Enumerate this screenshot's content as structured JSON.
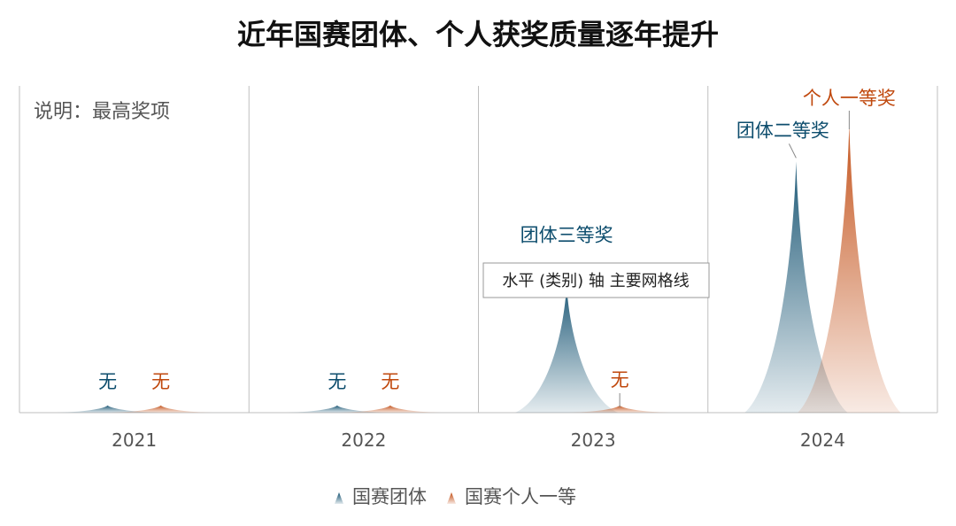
{
  "title": "近年国赛团体、个人获奖质量逐年提升",
  "note": "说明：最高奖项",
  "tooltip": "水平 (类别) 轴 主要网格线",
  "colors": {
    "team": "#0d4d6d",
    "individual": "#c0480d",
    "axis": "#bfbfbf"
  },
  "chart_data": {
    "type": "area",
    "title": "近年国赛团体、个人获奖质量逐年提升",
    "categories": [
      "2021",
      "2022",
      "2023",
      "2024"
    ],
    "ylim": [
      0,
      1
    ],
    "grid": "vertical separators between categories",
    "legend": "bottom",
    "series": [
      {
        "name": "国赛团体",
        "values": [
          0.025,
          0.025,
          0.44,
          0.87
        ],
        "labels": [
          "无",
          "无",
          "团体三等奖",
          "团体二等奖"
        ]
      },
      {
        "name": "国赛个人一等",
        "values": [
          0.025,
          0.025,
          0.025,
          1.0
        ],
        "labels": [
          "无",
          "无",
          "无",
          "个人一等奖"
        ]
      }
    ]
  }
}
